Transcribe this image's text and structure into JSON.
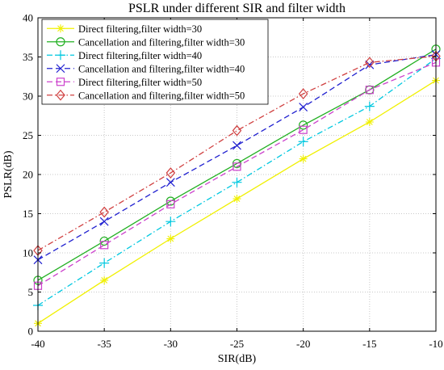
{
  "chart_data": {
    "type": "line",
    "title": "PSLR under different SIR and filter width",
    "xlabel": "SIR(dB)",
    "ylabel": "PSLR(dB)",
    "x": [
      -40,
      -35,
      -30,
      -25,
      -20,
      -15,
      -10
    ],
    "xlim": [
      -40,
      -10
    ],
    "ylim": [
      0,
      40
    ],
    "xticks": [
      "-40",
      "-35",
      "-30",
      "-25",
      "-20",
      "-15",
      "-10"
    ],
    "yticks": [
      "0",
      "5",
      "10",
      "15",
      "20",
      "25",
      "30",
      "35",
      "40"
    ],
    "grid": true,
    "legend_position": "top-left",
    "series": [
      {
        "name": "Direct filtering,filter width=30",
        "color": "#f0f000",
        "marker": "star",
        "dash": "solid",
        "values": [
          1.0,
          6.5,
          11.8,
          16.9,
          22.0,
          26.7,
          32.0
        ]
      },
      {
        "name": "Cancellation and filtering,filter width=30",
        "color": "#22b022",
        "marker": "circle",
        "dash": "solid",
        "values": [
          6.5,
          11.5,
          16.6,
          21.4,
          26.3,
          30.8,
          36.0
        ]
      },
      {
        "name": "Direct filtering,filter width=40",
        "color": "#00c8e0",
        "marker": "plus",
        "dash": "dashdot",
        "values": [
          3.3,
          8.7,
          14.0,
          19.0,
          24.2,
          28.7,
          34.8
        ]
      },
      {
        "name": "Cancellation and filtering,filter width=40",
        "color": "#2020d0",
        "marker": "x",
        "dash": "dashed",
        "values": [
          9.1,
          14.0,
          19.0,
          23.7,
          28.6,
          34.0,
          35.3
        ]
      },
      {
        "name": "Direct filtering,filter width=50",
        "color": "#cc40cc",
        "marker": "square",
        "dash": "dashed",
        "values": [
          5.8,
          11.0,
          16.2,
          21.0,
          25.7,
          30.8,
          34.3
        ]
      },
      {
        "name": "Cancellation and filtering,filter width=50",
        "color": "#d04040",
        "marker": "diamond",
        "dash": "dashdot",
        "values": [
          10.3,
          15.2,
          20.2,
          25.6,
          30.3,
          34.3,
          35.1
        ]
      }
    ]
  }
}
